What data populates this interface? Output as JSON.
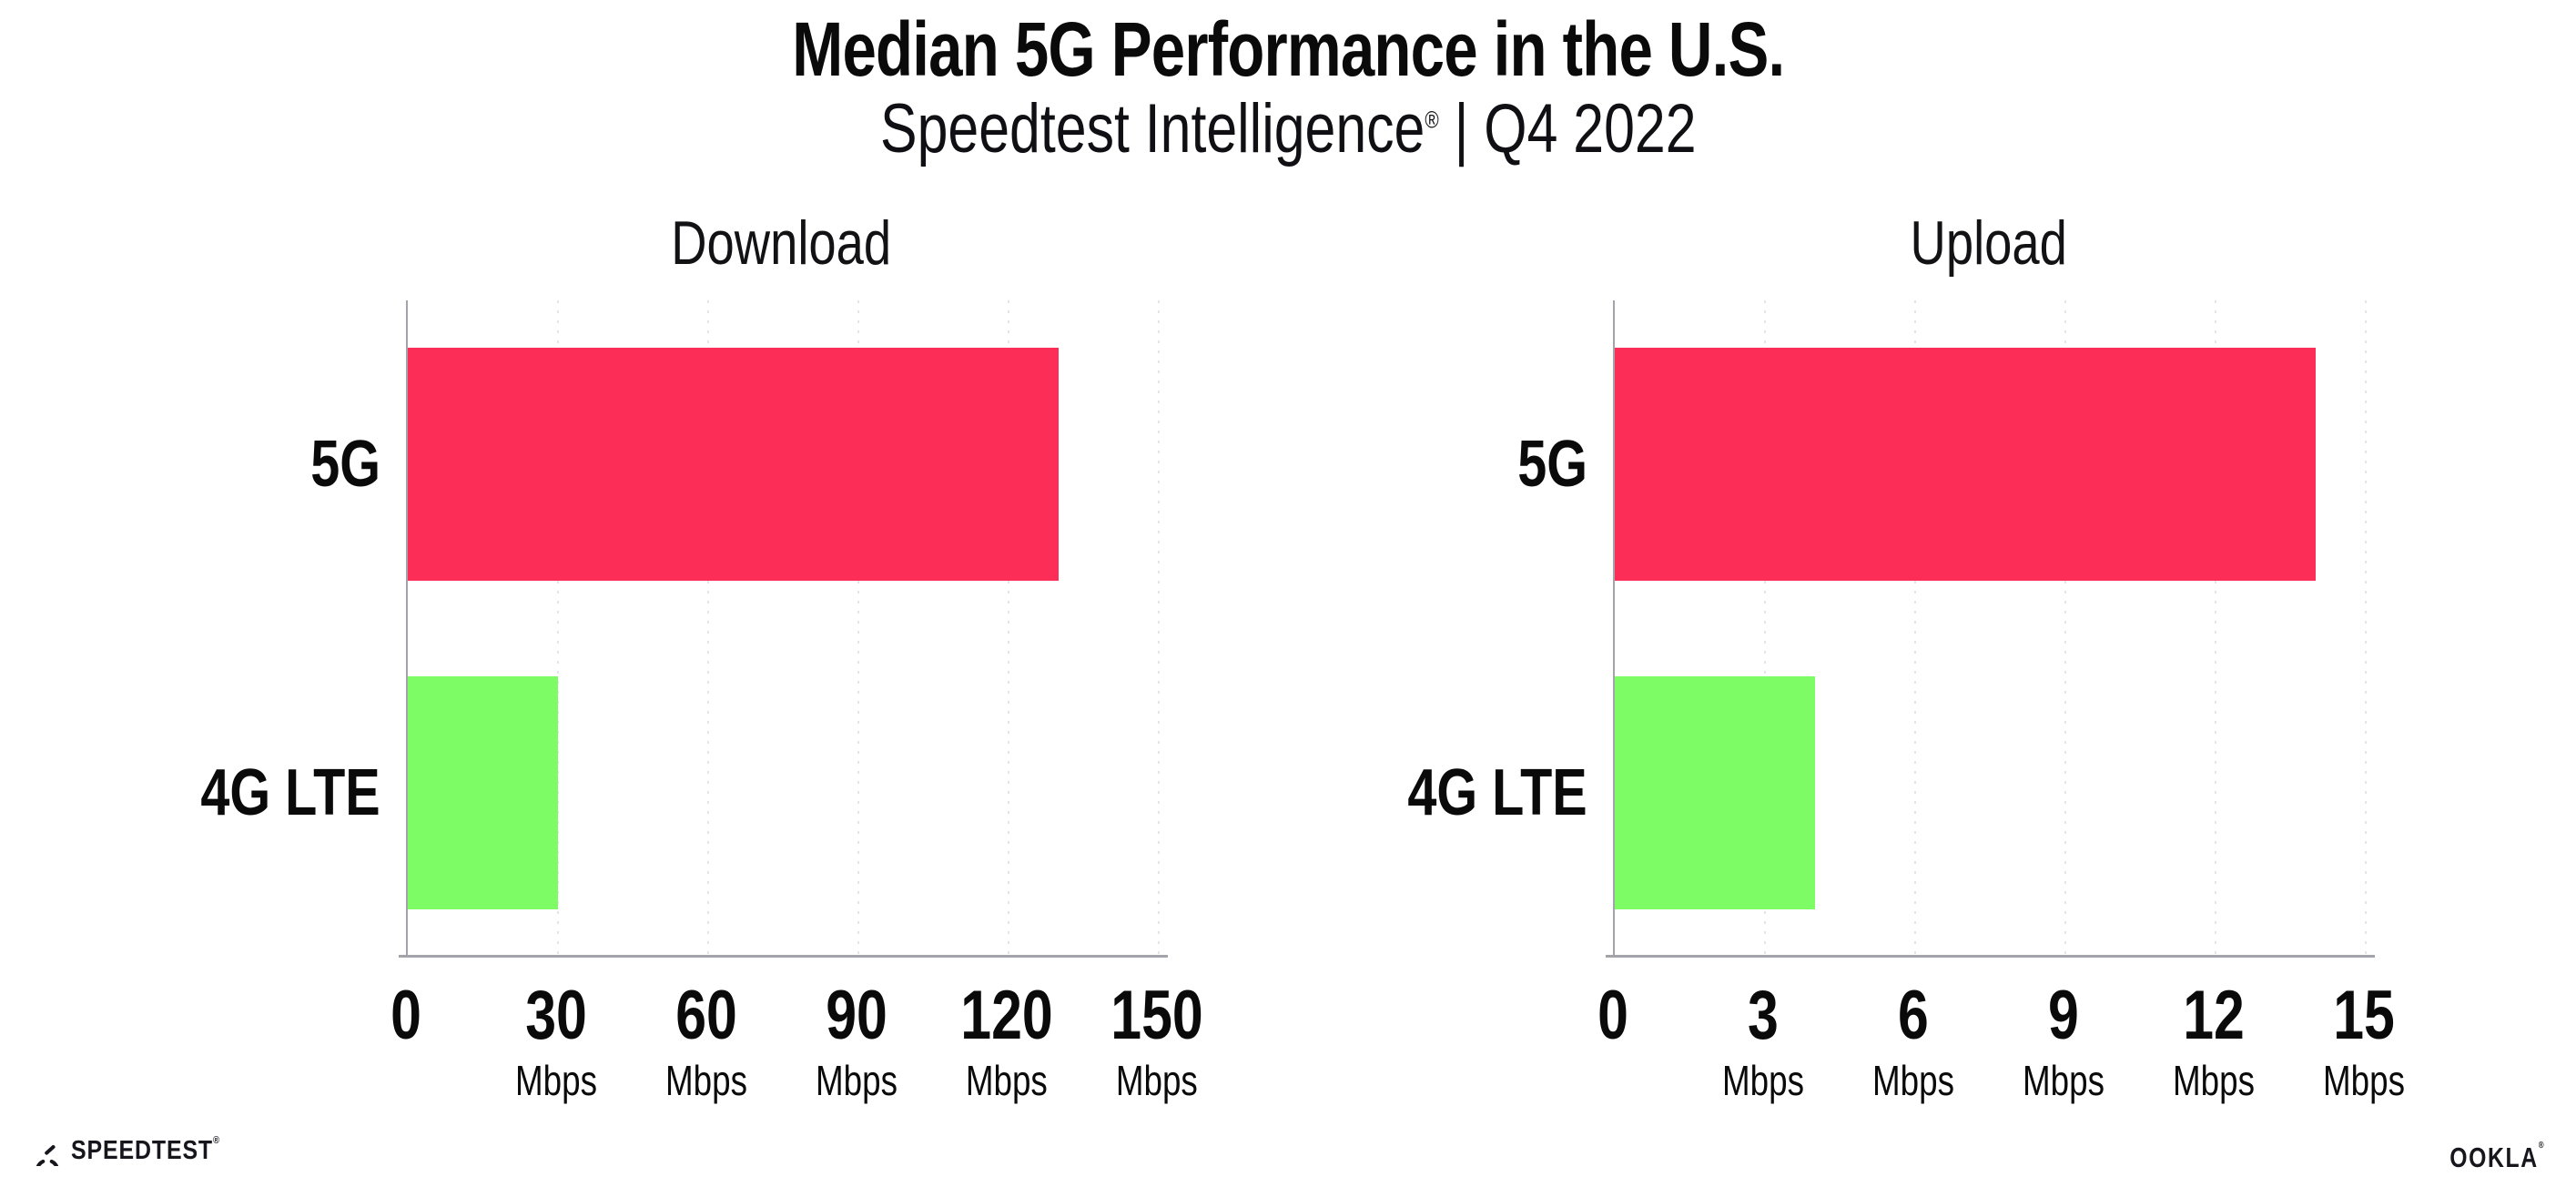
{
  "header": {
    "title": "Median 5G Performance in the U.S.",
    "subtitle_brand": "Speedtest Intelligence",
    "subtitle_reg": "®",
    "subtitle_rest": "| Q4 2022"
  },
  "colors": {
    "bar_5g": "#FC2D56",
    "bar_4g_lte": "#7EFC66",
    "axis": "#A3A3AA",
    "gridline": "#E4E4EA",
    "text": "#0A0A0B"
  },
  "chart_data": [
    {
      "type": "bar",
      "orientation": "horizontal",
      "title": "Download",
      "categories": [
        "5G",
        "4G LTE"
      ],
      "values": [
        130,
        30
      ],
      "unit": "Mbps",
      "xlim": [
        0,
        150
      ],
      "xticks": [
        0,
        30,
        60,
        90,
        120,
        150
      ],
      "bar_colors": [
        "#FC2D56",
        "#7EFC66"
      ],
      "grid": "dotted-vertical",
      "legend": "none"
    },
    {
      "type": "bar",
      "orientation": "horizontal",
      "title": "Upload",
      "categories": [
        "5G",
        "4G LTE"
      ],
      "values": [
        14,
        4
      ],
      "unit": "Mbps",
      "xlim": [
        0,
        15
      ],
      "xticks": [
        0,
        3,
        6,
        9,
        12,
        15
      ],
      "bar_colors": [
        "#FC2D56",
        "#7EFC66"
      ],
      "grid": "dotted-vertical",
      "legend": "none"
    }
  ],
  "footer": {
    "speedtest_label": "SPEEDTEST",
    "speedtest_reg": "®",
    "speedtest_icon": "speedtest-gauge-icon",
    "ookla_label": "OOKLA",
    "ookla_reg": "®"
  }
}
